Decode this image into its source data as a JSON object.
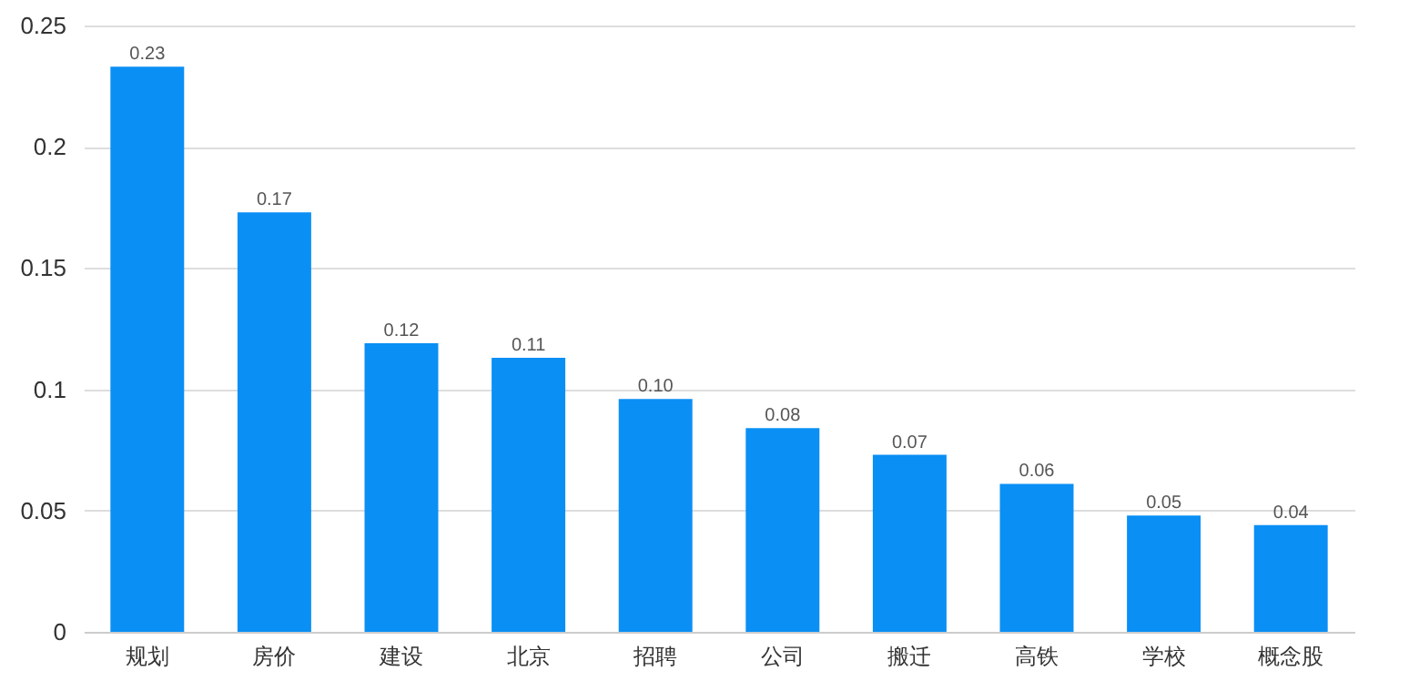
{
  "chart_data": {
    "type": "bar",
    "categories": [
      "规划",
      "房价",
      "建设",
      "北京",
      "招聘",
      "公司",
      "搬迁",
      "高铁",
      "学校",
      "概念股"
    ],
    "values": [
      0.233,
      0.173,
      0.119,
      0.113,
      0.096,
      0.084,
      0.073,
      0.061,
      0.048,
      0.044
    ],
    "value_labels": [
      "0.23",
      "0.17",
      "0.12",
      "0.11",
      "0.10",
      "0.08",
      "0.07",
      "0.06",
      "0.05",
      "0.04"
    ],
    "color": "#0a8ff5",
    "ylim": [
      0,
      0.25
    ],
    "yticks": [
      0,
      0.05,
      0.1,
      0.15,
      0.2,
      0.25
    ],
    "grid": "y"
  }
}
